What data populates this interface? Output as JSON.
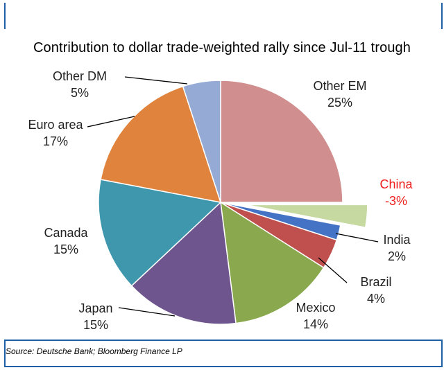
{
  "chart_data": {
    "type": "pie",
    "title": "Contribution to dollar trade-weighted rally since Jul-11 trough",
    "slices": [
      {
        "name": "Other EM",
        "pct_label": "25%",
        "value": 25,
        "color": "#d08e8e"
      },
      {
        "name": "China",
        "pct_label": "-3%",
        "value": -3,
        "color": "#c5d9a1",
        "exploded": true,
        "label_color": "#ee1c1c"
      },
      {
        "name": "India",
        "pct_label": "2%",
        "value": 2,
        "color": "#4472c4"
      },
      {
        "name": "Brazil",
        "pct_label": "4%",
        "value": 4,
        "color": "#c0504d"
      },
      {
        "name": "Mexico",
        "pct_label": "14%",
        "value": 14,
        "color": "#8aa94e"
      },
      {
        "name": "Japan",
        "pct_label": "15%",
        "value": 15,
        "color": "#6e558e"
      },
      {
        "name": "Canada",
        "pct_label": "15%",
        "value": 15,
        "color": "#3f97ae"
      },
      {
        "name": "Euro area",
        "pct_label": "17%",
        "value": 17,
        "color": "#e0833c"
      },
      {
        "name": "Other DM",
        "pct_label": "5%",
        "value": 5,
        "color": "#95abd6"
      }
    ]
  },
  "source": "Source: Deutsche Bank; Bloomberg Finance LP"
}
